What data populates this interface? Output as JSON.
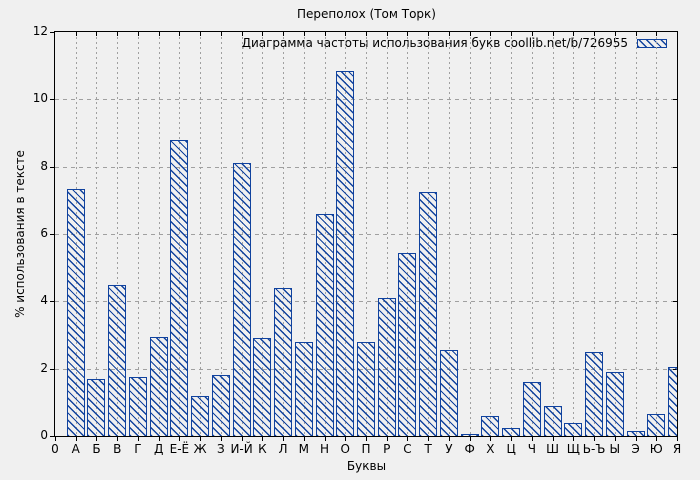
{
  "title": "Переполох (Том Торк)",
  "legend": {
    "label": "Диаграмма частоты использования букв coollib.net/b/726955"
  },
  "axes": {
    "x_label": "Буквы",
    "y_label": "% использования в тексте",
    "origin_tick_label": "0",
    "y_ticks": [
      0,
      2,
      4,
      6,
      8,
      10,
      12
    ]
  },
  "colors": {
    "bar": "#10429e",
    "grid": "#a0a0a0",
    "background": "#f0f0f0",
    "border": "#000000"
  },
  "chart_data": {
    "type": "bar",
    "title": "Переполох (Том Торк)",
    "xlabel": "Буквы",
    "ylabel": "% использования в тексте",
    "ylim": [
      0,
      12
    ],
    "grid": true,
    "legend": "Диаграмма частоты использования букв coollib.net/b/726955",
    "legend_position": "top-right",
    "bar_style": "hatched-diagonal",
    "categories": [
      "А",
      "Б",
      "В",
      "Г",
      "Д",
      "Е-Ё",
      "Ж",
      "З",
      "И-Й",
      "К",
      "Л",
      "М",
      "Н",
      "О",
      "П",
      "Р",
      "С",
      "Т",
      "У",
      "Ф",
      "Х",
      "Ц",
      "Ч",
      "Ш",
      "Щ",
      "Ь-Ъ",
      "Ы",
      "Э",
      "Ю",
      "Я"
    ],
    "values": [
      7.35,
      1.7,
      4.5,
      1.75,
      2.95,
      8.8,
      1.2,
      1.8,
      8.1,
      2.9,
      4.4,
      2.8,
      6.6,
      10.85,
      2.8,
      4.1,
      5.45,
      7.25,
      2.55,
      0.05,
      0.6,
      0.25,
      1.6,
      0.9,
      0.4,
      2.5,
      1.9,
      0.15,
      0.65,
      2.05
    ]
  }
}
